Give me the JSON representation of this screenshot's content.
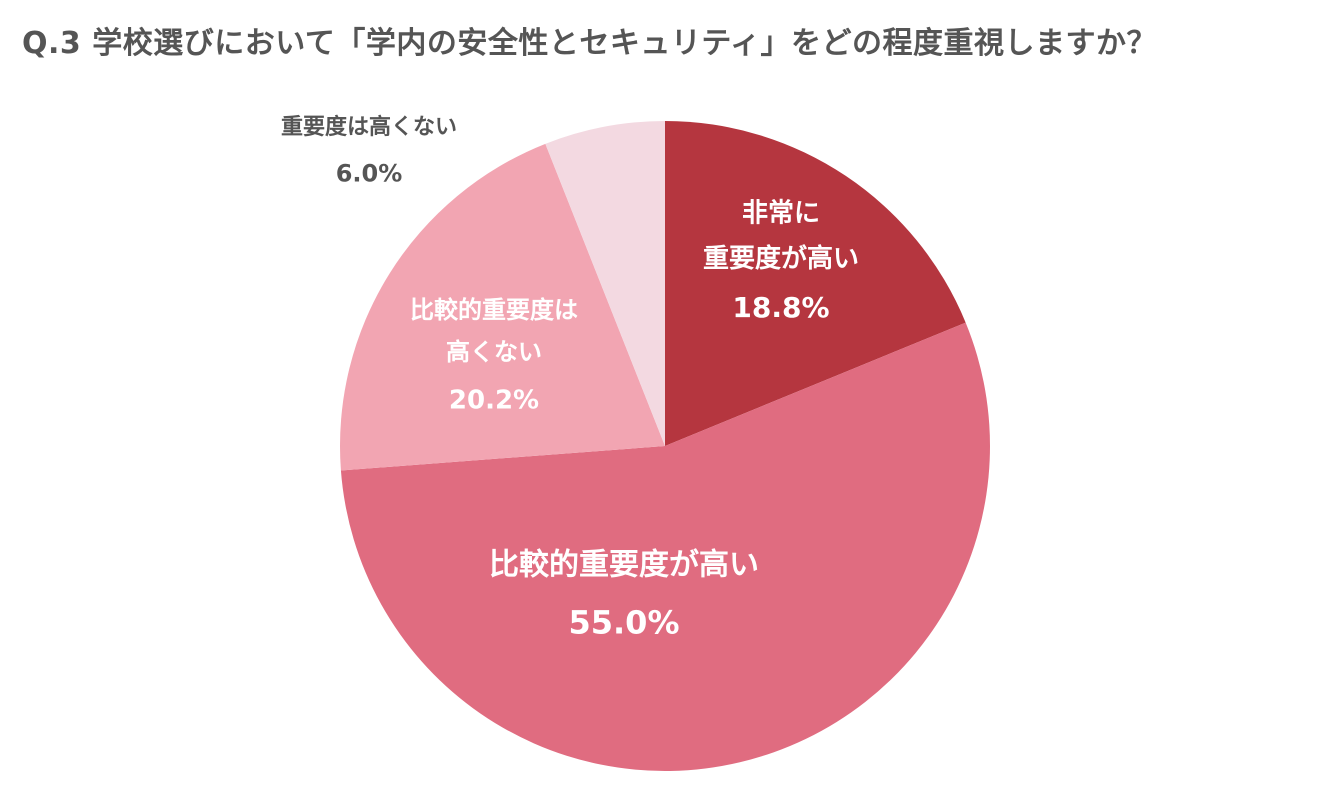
{
  "title": "Q.3 学校選びにおいて「学内の安全性とセキュリティ」をどの程度重視しますか？",
  "chart_data": {
    "type": "pie",
    "title": "Q.3 学校選びにおいて「学内の安全性とセキュリティ」をどの程度重視しますか？",
    "slices": [
      {
        "label_lines": [
          "非常に",
          "重要度が高い"
        ],
        "label": "非常に重要度が高い",
        "value": 18.8,
        "value_label": "18.8%",
        "color": "#b5363f"
      },
      {
        "label_lines": [
          "比較的重要度が高い"
        ],
        "label": "比較的重要度が高い",
        "value": 55.0,
        "value_label": "55.0%",
        "color": "#e06c80"
      },
      {
        "label_lines": [
          "比較的重要度は",
          "高くない"
        ],
        "label": "比較的重要度は高くない",
        "value": 20.2,
        "value_label": "20.2%",
        "color": "#f2a5b2"
      },
      {
        "label_lines": [
          "重要度は高くない"
        ],
        "label": "重要度は高くない",
        "value": 6.0,
        "value_label": "6.0%",
        "color": "#f3d9e1"
      }
    ],
    "start": "12 o'clock",
    "direction": "clockwise",
    "legend": "none"
  }
}
